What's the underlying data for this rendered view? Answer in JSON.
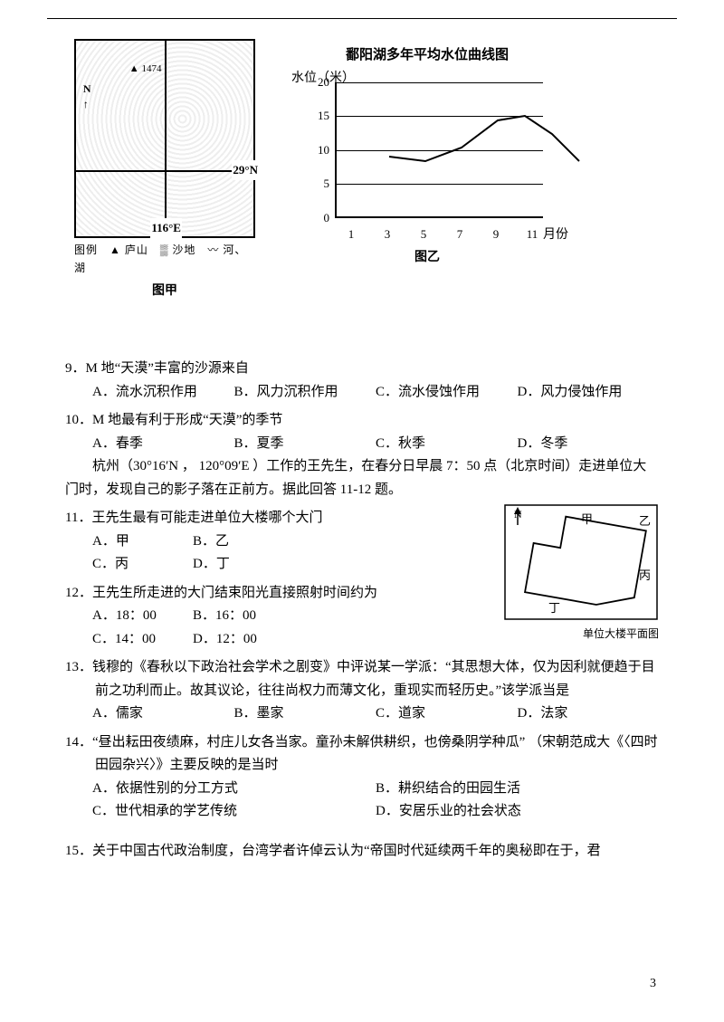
{
  "figures": {
    "map": {
      "peak_label": "1474",
      "north_label": "N",
      "lat_label": "29°N",
      "lon_label": "116°E",
      "legend": "图例　▲ 庐山　▒ 沙地　〰 河、湖",
      "caption": "图甲"
    },
    "chart": {
      "title": "鄱阳湖多年平均水位曲线图",
      "y_axis_label": "水位（米）",
      "x_axis_label": "月份",
      "y_ticks": [
        "20",
        "15",
        "10",
        "5",
        "0"
      ],
      "x_ticks": [
        "1",
        "3",
        "5",
        "7",
        "9",
        "11"
      ],
      "caption": "图乙",
      "curve_points": [
        [
          10,
          70
        ],
        [
          50,
          75
        ],
        [
          90,
          60
        ],
        [
          130,
          30
        ],
        [
          160,
          25
        ],
        [
          190,
          45
        ],
        [
          220,
          75
        ]
      ],
      "curve_color": "#000",
      "line_width": 2,
      "grid_color": "#000",
      "y_range": [
        0,
        20
      ]
    }
  },
  "q9": {
    "stem": "9．M 地“天漠”丰富的沙源来自",
    "A": "A．流水沉积作用",
    "B": "B．风力沉积作用",
    "C": "C．流水侵蚀作用",
    "D": "D．风力侵蚀作用"
  },
  "q10": {
    "stem": "10．M 地最有利于形成“天漠”的季节",
    "A": "A．春季",
    "B": "B．夏季",
    "C": "C．秋季",
    "D": "D．冬季"
  },
  "passage1": "　　杭州（30°16′N ， 120°09′E ）工作的王先生，在春分日早晨 7：50 点（北京时间）走进单位大门时，发现自己的影子落在正前方。据此回答 11-12 题。",
  "q11": {
    "stem": "11．王先生最有可能走进单位大楼哪个大门",
    "A": "A．甲",
    "B": "B．乙",
    "C": "C．丙",
    "D": "D．丁"
  },
  "q12": {
    "stem": "12．王先生所走进的大门结束阳光直接照射时间约为",
    "A": "A．18：00",
    "B": "B．16：00",
    "C": "C．14：00",
    "D": "D．12：00"
  },
  "building": {
    "north": "N",
    "labels": {
      "jia": "甲",
      "yi": "乙",
      "bing": "丙",
      "ding": "丁"
    },
    "caption": "单位大楼平面图"
  },
  "q13": {
    "stem": "13．钱穆的《春秋以下政治社会学术之剧变》中评说某一学派：“其思想大体，仅为因利就便趋于目前之功利而止。故其议论，往往尚权力而薄文化，重现实而轻历史。”该学派当是",
    "A": "A．儒家",
    "B": "B．墨家",
    "C": "C．道家",
    "D": "D．法家"
  },
  "q14": {
    "stem": "14．“昼出耘田夜绩麻，村庄儿女各当家。童孙未解供耕织，也傍桑阴学种瓜” （宋朝范成大《〈四时田园杂兴〉》主要反映的是当时",
    "A": "A．依据性别的分工方式",
    "B": "B．耕织结合的田园生活",
    "C": "C．世代相承的学艺传统",
    "D": "D．安居乐业的社会状态"
  },
  "q15": {
    "stem": "15．关于中国古代政治制度，台湾学者许倬云认为“帝国时代延续两千年的奥秘即在于，君"
  },
  "page": "3"
}
